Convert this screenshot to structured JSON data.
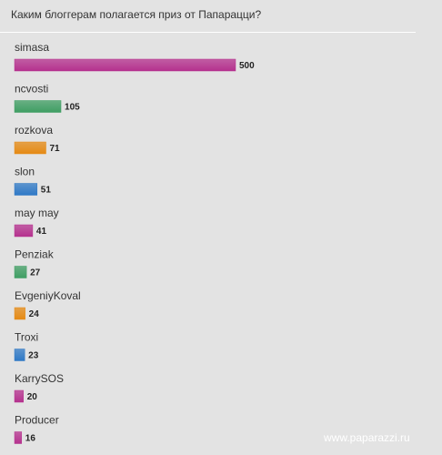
{
  "poll": {
    "title": "Каким блоггерам полагается приз от Папарацци?"
  },
  "chart_data": {
    "type": "bar",
    "orientation": "horizontal",
    "title": "Каким блоггерам полагается приз от Папарацци?",
    "categories": [
      "simasa",
      "ncvosti",
      "rozkova",
      "slon",
      "may may",
      "Penziak",
      "EvgeniyKoval",
      "Troxi",
      "KarrySOS",
      "Producer"
    ],
    "values": [
      500,
      105,
      71,
      51,
      41,
      27,
      24,
      23,
      20,
      16
    ],
    "colors": [
      "#b5318e",
      "#3f9e63",
      "#e58a14",
      "#2f79c6",
      "#b5318e",
      "#3f9e63",
      "#e58a14",
      "#2f79c6",
      "#b5318e",
      "#b5318e"
    ],
    "max_value": 500,
    "grid": false,
    "legend": "none"
  },
  "watermark": {
    "text": "www.paparazzi.ru"
  }
}
